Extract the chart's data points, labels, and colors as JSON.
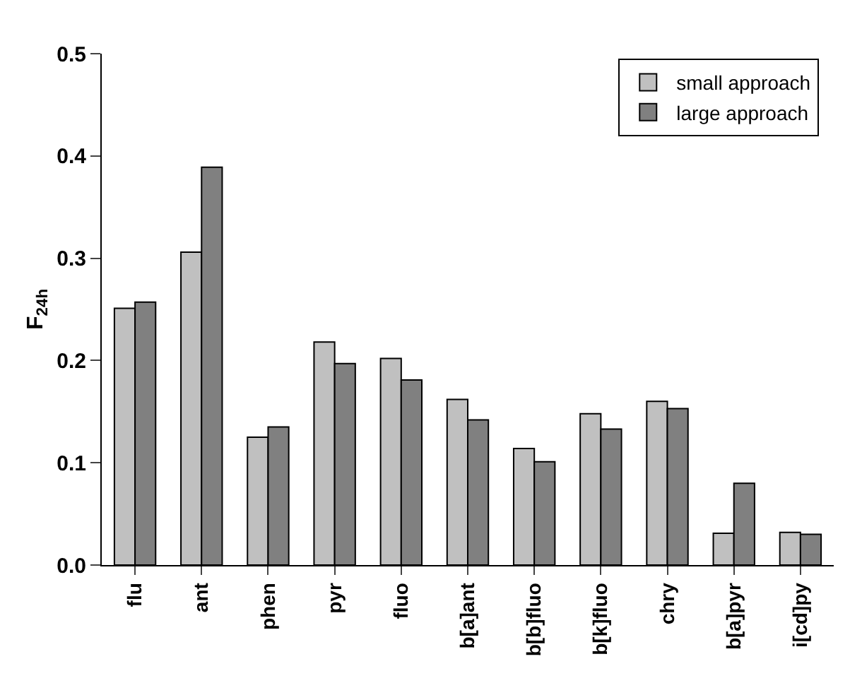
{
  "chart_data": {
    "type": "bar",
    "ylabel": "F$_{24h}$",
    "categories": [
      "flu",
      "ant",
      "phen",
      "pyr",
      "fluo",
      "b[a]ant",
      "b[b]fluo",
      "b[k]fluo",
      "chry",
      "b[a]pyr",
      "i[cd]py"
    ],
    "series": [
      {
        "name": "small approach",
        "color": "#c0c0c0",
        "values": [
          0.251,
          0.306,
          0.125,
          0.218,
          0.202,
          0.162,
          0.114,
          0.148,
          0.16,
          0.031,
          0.032
        ]
      },
      {
        "name": "large approach",
        "color": "#808080",
        "values": [
          0.257,
          0.389,
          0.135,
          0.197,
          0.181,
          0.142,
          0.101,
          0.133,
          0.153,
          0.08,
          0.03
        ]
      }
    ],
    "ylim": [
      0,
      0.5
    ],
    "yticks": [
      {
        "value": 0,
        "label": "0.0"
      },
      {
        "value": 0.1,
        "label": "0.1"
      },
      {
        "value": 0.2,
        "label": "0.2"
      },
      {
        "value": 0.3,
        "label": "0.3"
      },
      {
        "value": 0.4,
        "label": "0.4"
      },
      {
        "value": 0.5,
        "label": "0.5"
      }
    ],
    "grid": false,
    "legend": "top right"
  }
}
